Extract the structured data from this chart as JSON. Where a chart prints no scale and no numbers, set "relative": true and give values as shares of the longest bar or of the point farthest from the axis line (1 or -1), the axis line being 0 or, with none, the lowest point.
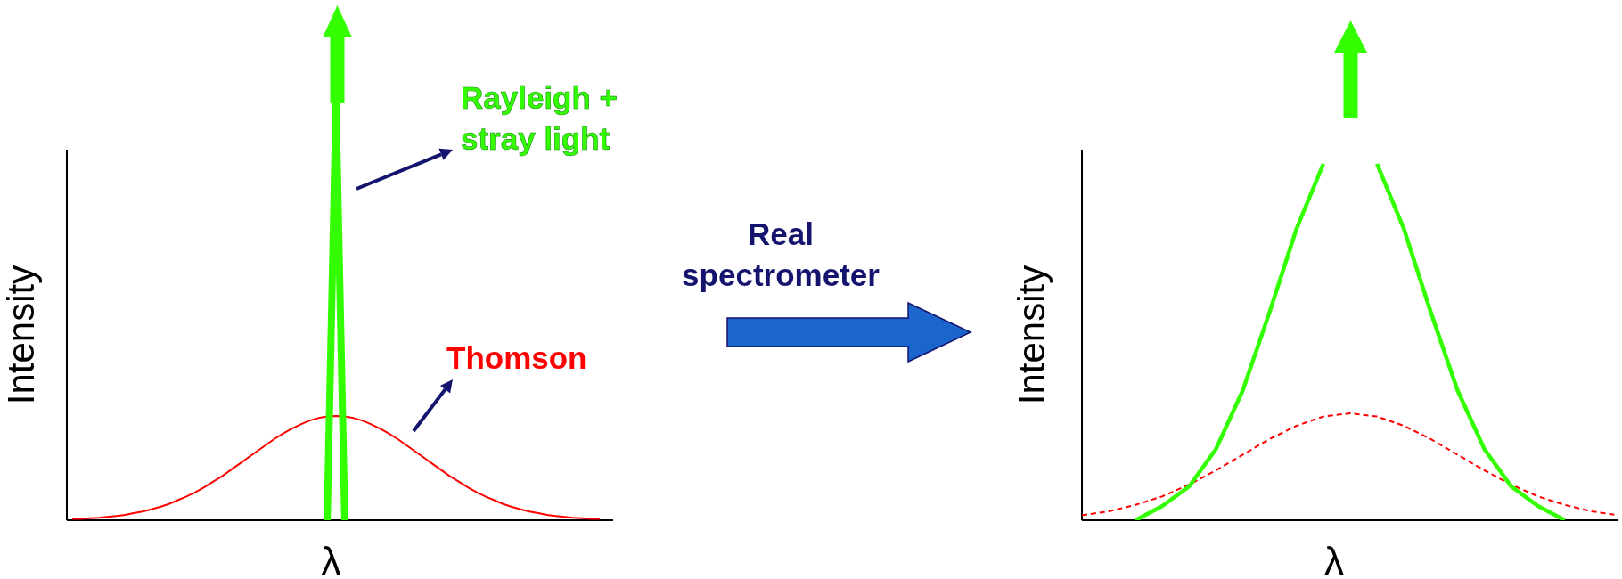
{
  "chart_data": [
    {
      "type": "line",
      "relative": true,
      "xlabel": "λ",
      "ylabel": "Intensity",
      "annotations": [
        "Real spectrometer"
      ],
      "categories": [
        null,
        null,
        null,
        null,
        null,
        null,
        null,
        null,
        null,
        null,
        null,
        null,
        null,
        null,
        null,
        null,
        null,
        null,
        null,
        null,
        null,
        null,
        null,
        null,
        null,
        null,
        null,
        null,
        null,
        null,
        null,
        null,
        null,
        null,
        null,
        null,
        null,
        null,
        null,
        null,
        null,
        null,
        null,
        null,
        null,
        null,
        null,
        null,
        null,
        null,
        null,
        null,
        null,
        null,
        null,
        null,
        null,
        null,
        null,
        null,
        null
      ],
      "series": [
        {
          "name": "Thomson",
          "color": "#ff0000",
          "values": [
            0.003,
            0.003,
            0.005,
            0.006,
            0.008,
            0.01,
            0.013,
            0.017,
            0.021,
            0.026,
            0.032,
            0.039,
            0.048,
            0.057,
            0.067,
            0.079,
            0.092,
            0.105,
            0.12,
            0.135,
            0.15,
            0.165,
            0.18,
            0.195,
            0.208,
            0.22,
            0.23,
            0.239,
            0.245,
            0.249,
            0.25,
            0.249,
            0.245,
            0.239,
            0.23,
            0.22,
            0.208,
            0.195,
            0.18,
            0.165,
            0.15,
            0.135,
            0.12,
            0.105,
            0.092,
            0.079,
            0.067,
            0.057,
            0.048,
            0.039,
            0.032,
            0.026,
            0.021,
            0.017,
            0.013,
            0.01,
            0.008,
            0.006,
            0.005,
            0.003,
            0.003
          ]
        },
        {
          "name": "Rayleigh + stray light",
          "color": "#33ff00",
          "values": [
            null,
            null,
            null,
            null,
            null,
            null,
            null,
            null,
            null,
            null,
            null,
            null,
            null,
            null,
            null,
            null,
            null,
            null,
            null,
            null,
            null,
            null,
            null,
            null,
            null,
            null,
            null,
            null,
            null,
            0,
            1,
            0,
            null,
            null,
            null,
            null,
            null,
            null,
            null,
            null,
            null,
            null,
            null,
            null,
            null,
            null,
            null,
            null,
            null,
            null,
            null,
            null,
            null,
            null,
            null,
            null,
            null,
            null,
            null,
            null,
            null
          ]
        }
      ]
    },
    {
      "type": "line",
      "relative": true,
      "xlabel": "λ",
      "ylabel": "Intensity",
      "categories": [
        null,
        null,
        null,
        null,
        null,
        null,
        null,
        null,
        null,
        null,
        null,
        null,
        null,
        null,
        null,
        null,
        null,
        null,
        null,
        null,
        null
      ],
      "series": [
        {
          "color": "#ff0000",
          "line_style": "dashed",
          "values": [
            0.014,
            0.025,
            0.043,
            0.067,
            0.1,
            0.14,
            0.184,
            0.228,
            0.265,
            0.291,
            0.3,
            0.291,
            0.265,
            0.228,
            0.184,
            0.14,
            0.1,
            0.067,
            0.043,
            0.025,
            0.014
          ]
        },
        {
          "color": "#33ff00",
          "values": [
            null,
            null,
            0,
            0.04,
            0.095,
            0.2,
            0.365,
            0.585,
            0.818,
            1,
            null,
            1,
            0.818,
            0.585,
            0.365,
            0.2,
            0.095,
            0.04,
            0,
            null,
            null
          ]
        }
      ]
    }
  ]
}
